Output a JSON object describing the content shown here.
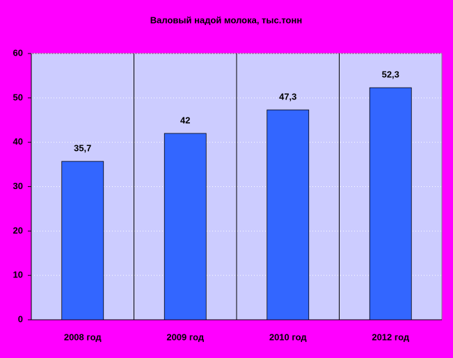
{
  "chart_data": {
    "type": "bar",
    "title": "Валовый надой молока, тыс.тонн",
    "categories": [
      "2008 год",
      "2009 год",
      "2010 год",
      "2012 год"
    ],
    "values": [
      35.7,
      42,
      47.3,
      52.3
    ],
    "value_labels": [
      "35,7",
      "42",
      "47,3",
      "52,3"
    ],
    "color": "#3366ff",
    "plot_background": "#ccccff",
    "ylim": [
      0,
      60
    ],
    "yticks": [
      0,
      10,
      20,
      30,
      40,
      50,
      60
    ],
    "grid": true
  }
}
